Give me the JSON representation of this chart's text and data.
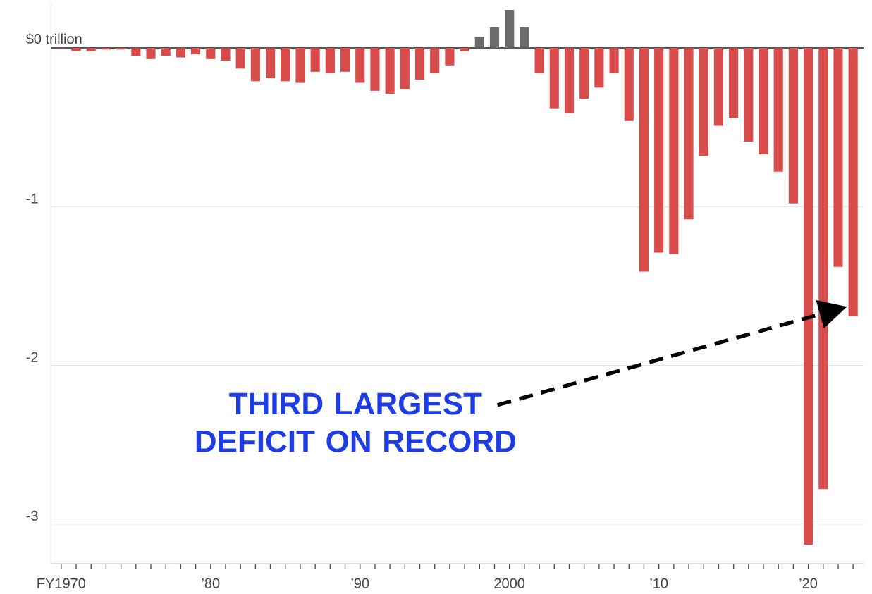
{
  "chart_data": {
    "type": "bar",
    "x": [
      1970,
      1971,
      1972,
      1973,
      1974,
      1975,
      1976,
      1977,
      1978,
      1979,
      1980,
      1981,
      1982,
      1983,
      1984,
      1985,
      1986,
      1987,
      1988,
      1989,
      1990,
      1991,
      1992,
      1993,
      1994,
      1995,
      1996,
      1997,
      1998,
      1999,
      2000,
      2001,
      2002,
      2003,
      2004,
      2005,
      2006,
      2007,
      2008,
      2009,
      2010,
      2011,
      2012,
      2013,
      2014,
      2015,
      2016,
      2017,
      2018,
      2019,
      2020,
      2021,
      2022,
      2023
    ],
    "values": [
      -0.003,
      -0.02,
      -0.02,
      -0.01,
      -0.01,
      -0.05,
      -0.07,
      -0.05,
      -0.06,
      -0.04,
      -0.07,
      -0.08,
      -0.13,
      -0.21,
      -0.19,
      -0.21,
      -0.22,
      -0.15,
      -0.16,
      -0.15,
      -0.22,
      -0.27,
      -0.29,
      -0.26,
      -0.2,
      -0.16,
      -0.11,
      -0.02,
      0.07,
      0.13,
      0.24,
      0.13,
      -0.16,
      -0.38,
      -0.41,
      -0.32,
      -0.25,
      -0.16,
      -0.46,
      -1.41,
      -1.29,
      -1.3,
      -1.08,
      -0.68,
      -0.49,
      -0.44,
      -0.59,
      -0.67,
      -0.78,
      -0.98,
      -3.13,
      -2.78,
      -1.38,
      -1.69
    ],
    "colors": [
      "#d94c4c",
      "#d94c4c",
      "#d94c4c",
      "#d94c4c",
      "#d94c4c",
      "#d94c4c",
      "#d94c4c",
      "#d94c4c",
      "#d94c4c",
      "#d94c4c",
      "#d94c4c",
      "#d94c4c",
      "#d94c4c",
      "#d94c4c",
      "#d94c4c",
      "#d94c4c",
      "#d94c4c",
      "#d94c4c",
      "#d94c4c",
      "#d94c4c",
      "#d94c4c",
      "#d94c4c",
      "#d94c4c",
      "#d94c4c",
      "#d94c4c",
      "#d94c4c",
      "#d94c4c",
      "#d94c4c",
      "#6b6b6b",
      "#6b6b6b",
      "#6b6b6b",
      "#6b6b6b",
      "#d94c4c",
      "#d94c4c",
      "#d94c4c",
      "#d94c4c",
      "#d94c4c",
      "#d94c4c",
      "#d94c4c",
      "#d94c4c",
      "#d94c4c",
      "#d94c4c",
      "#d94c4c",
      "#d94c4c",
      "#d94c4c",
      "#d94c4c",
      "#d94c4c",
      "#d94c4c",
      "#d94c4c",
      "#d94c4c",
      "#d94c4c",
      "#d94c4c",
      "#d94c4c",
      "#d94c4c"
    ],
    "xlim": [
      1969.3,
      2023.7
    ],
    "xticks": [
      {
        "value": 1970,
        "label": "FY1970"
      },
      {
        "value": 1971,
        "label": null
      },
      {
        "value": 1972,
        "label": null
      },
      {
        "value": 1973,
        "label": null
      },
      {
        "value": 1974,
        "label": null
      },
      {
        "value": 1975,
        "label": null
      },
      {
        "value": 1976,
        "label": null
      },
      {
        "value": 1977,
        "label": null
      },
      {
        "value": 1978,
        "label": null
      },
      {
        "value": 1979,
        "label": null
      },
      {
        "value": 1980,
        "label": "’80"
      },
      {
        "value": 1981,
        "label": null
      },
      {
        "value": 1982,
        "label": null
      },
      {
        "value": 1983,
        "label": null
      },
      {
        "value": 1984,
        "label": null
      },
      {
        "value": 1985,
        "label": null
      },
      {
        "value": 1986,
        "label": null
      },
      {
        "value": 1987,
        "label": null
      },
      {
        "value": 1988,
        "label": null
      },
      {
        "value": 1989,
        "label": null
      },
      {
        "value": 1990,
        "label": "’90"
      },
      {
        "value": 1991,
        "label": null
      },
      {
        "value": 1992,
        "label": null
      },
      {
        "value": 1993,
        "label": null
      },
      {
        "value": 1994,
        "label": null
      },
      {
        "value": 1995,
        "label": null
      },
      {
        "value": 1996,
        "label": null
      },
      {
        "value": 1997,
        "label": null
      },
      {
        "value": 1998,
        "label": null
      },
      {
        "value": 1999,
        "label": null
      },
      2000,
      {
        "value": 2001,
        "label": null
      },
      {
        "value": 2002,
        "label": null
      },
      {
        "value": 2003,
        "label": null
      },
      {
        "value": 2004,
        "label": null
      },
      {
        "value": 2005,
        "label": null
      },
      {
        "value": 2006,
        "label": null
      },
      {
        "value": 2007,
        "label": null
      },
      {
        "value": 2008,
        "label": null
      },
      {
        "value": 2009,
        "label": null
      },
      {
        "value": 2010,
        "label": "’10"
      },
      {
        "value": 2011,
        "label": null
      },
      {
        "value": 2012,
        "label": null
      },
      {
        "value": 2013,
        "label": null
      },
      {
        "value": 2014,
        "label": null
      },
      {
        "value": 2015,
        "label": null
      },
      {
        "value": 2016,
        "label": null
      },
      {
        "value": 2017,
        "label": null
      },
      {
        "value": 2018,
        "label": null
      },
      {
        "value": 2019,
        "label": null
      },
      {
        "value": 2020,
        "label": "’20"
      },
      {
        "value": 2021,
        "label": null
      },
      {
        "value": 2022,
        "label": null
      },
      {
        "value": 2023,
        "label": null
      }
    ],
    "ylim": [
      -3.25,
      0.28
    ],
    "yticks": [
      {
        "value": 0,
        "label": "$0 trillion"
      },
      -1,
      -2,
      -3
    ],
    "grid": "y",
    "ref_lines": [
      {
        "axis": "y",
        "value": 0,
        "color": "#222222"
      }
    ],
    "annotations": [
      "THIRD LARGEST DEFICIT ON RECORD"
    ]
  }
}
